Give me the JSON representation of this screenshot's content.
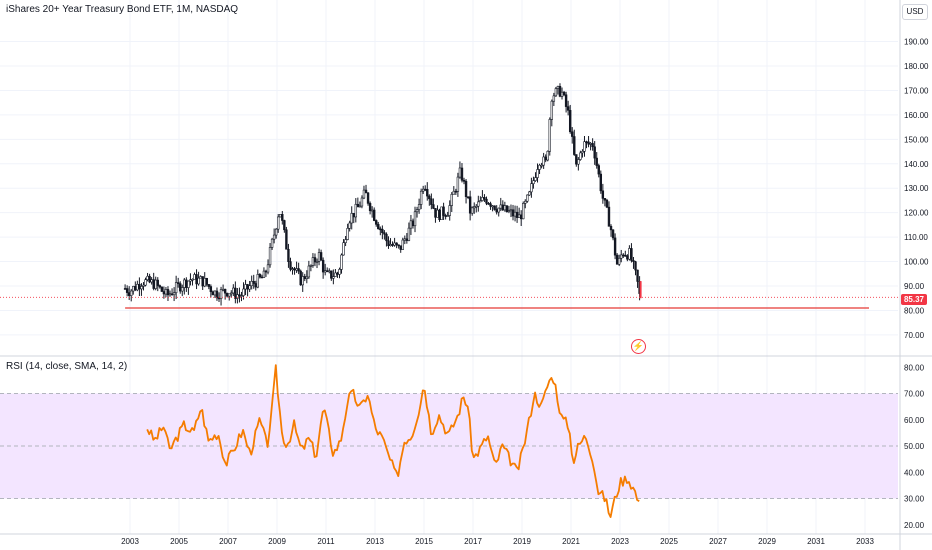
{
  "header": {
    "title": "iShares 20+ Year Treasury Bond ETF, 1M, NASDAQ",
    "currency": "USD"
  },
  "last_price": "85.37",
  "rsi_title": "RSI (14, close, SMA, 14, 2)",
  "colors": {
    "up": "#131722",
    "down": "#131722",
    "rsi_line": "#f57c00",
    "rsi_band": "#f3e5ff",
    "support_line": "#e53935",
    "price_tag": "#f23645"
  },
  "icons": {
    "alert": "lightning-icon"
  },
  "chart_data": [
    {
      "type": "candlestick",
      "ylim": [
        63,
        198
      ],
      "y_ticks": [
        "190.00",
        "180.00",
        "170.00",
        "160.00",
        "150.00",
        "140.00",
        "130.00",
        "120.00",
        "110.00",
        "100.00",
        "90.00",
        "80.00",
        "70.00"
      ],
      "y_tick_values": [
        190,
        180,
        170,
        160,
        150,
        140,
        130,
        120,
        110,
        100,
        90,
        80,
        70
      ],
      "x_ticks": [
        "2003",
        "2005",
        "2007",
        "2009",
        "2011",
        "2013",
        "2015",
        "2017",
        "2019",
        "2021",
        "2023",
        "2025",
        "2027",
        "2029",
        "2031",
        "2033"
      ],
      "x_tick_years": [
        2003,
        2005,
        2007,
        2009,
        2011,
        2013,
        2015,
        2017,
        2019,
        2021,
        2023,
        2025,
        2027,
        2029,
        2031,
        2033
      ],
      "horizontal_line": 81,
      "current_price": 85.37,
      "approx_monthly_close_by_year": {
        "2002.8": 89,
        "2003.0": 88,
        "2003.5": 92,
        "2004.0": 91,
        "2004.5": 86,
        "2005.0": 90,
        "2005.5": 93,
        "2006.0": 92,
        "2006.5": 87,
        "2007.0": 88,
        "2007.5": 86,
        "2008.0": 91,
        "2008.5": 94,
        "2008.9": 112,
        "2009.1": 122,
        "2009.5": 100,
        "2010.0": 92,
        "2010.7": 103,
        "2011.0": 94,
        "2011.5": 95,
        "2011.9": 117,
        "2012.3": 122,
        "2012.6": 128,
        "2013.0": 118,
        "2013.5": 108,
        "2014.0": 105,
        "2014.6": 117,
        "2015.0": 133,
        "2015.5": 119,
        "2016.0": 121,
        "2016.5": 137,
        "2016.9": 120,
        "2017.5": 126,
        "2018.0": 122,
        "2018.5": 120,
        "2018.9": 118,
        "2019.3": 127,
        "2019.7": 142,
        "2020.0": 140,
        "2020.2": 168,
        "2020.6": 170,
        "2020.9": 160,
        "2021.2": 138,
        "2021.5": 148,
        "2021.9": 148,
        "2022.3": 126,
        "2022.6": 115,
        "2022.9": 98,
        "2023.1": 104,
        "2023.4": 103,
        "2023.7": 92,
        "2023.8": 86
      }
    },
    {
      "type": "line",
      "title": "RSI (14, close, SMA, 14, 2)",
      "ylim": [
        18,
        82
      ],
      "y_ticks": [
        "80.00",
        "70.00",
        "60.00",
        "50.00",
        "40.00",
        "30.00",
        "20.00"
      ],
      "y_tick_values": [
        80,
        70,
        60,
        50,
        40,
        30,
        20
      ],
      "bands": {
        "upper": 70,
        "middle": 50,
        "lower": 30
      },
      "approx_rsi_by_year": {
        "2003.7": 57,
        "2004.0": 52,
        "2004.4": 58,
        "2004.6": 48,
        "2004.9": 53,
        "2005.2": 58,
        "2005.6": 55,
        "2005.9": 65,
        "2006.2": 52,
        "2006.6": 55,
        "2006.9": 43,
        "2007.2": 48,
        "2007.6": 56,
        "2007.9": 47,
        "2008.3": 60,
        "2008.6": 50,
        "2008.8": 64,
        "2008.95": 79,
        "2009.2": 55,
        "2009.4": 50,
        "2009.7": 58,
        "2010.0": 48,
        "2010.3": 53,
        "2010.6": 46,
        "2010.9": 65,
        "2011.3": 47,
        "2011.6": 52,
        "2011.9": 68,
        "2012.1": 70,
        "2012.4": 64,
        "2012.7": 70,
        "2013.0": 57,
        "2013.3": 53,
        "2013.6": 45,
        "2013.9": 38,
        "2014.2": 52,
        "2014.5": 54,
        "2014.8": 64,
        "2015.0": 74,
        "2015.3": 55,
        "2015.6": 62,
        "2016.0": 54,
        "2016.4": 62,
        "2016.6": 69,
        "2016.8": 65,
        "2017.0": 45,
        "2017.3": 49,
        "2017.6": 54,
        "2017.9": 42,
        "2018.2": 50,
        "2018.5": 45,
        "2018.8": 40,
        "2019.0": 47,
        "2019.3": 60,
        "2019.5": 70,
        "2019.8": 65,
        "2020.1": 75,
        "2020.3": 76,
        "2020.6": 61,
        "2020.9": 58,
        "2021.1": 44,
        "2021.3": 50,
        "2021.6": 54,
        "2021.9": 45,
        "2022.1": 33,
        "2022.4": 30,
        "2022.6": 23,
        "2022.8": 30,
        "2023.0": 36,
        "2023.3": 38,
        "2023.6": 33,
        "2023.8": 27
      }
    }
  ]
}
